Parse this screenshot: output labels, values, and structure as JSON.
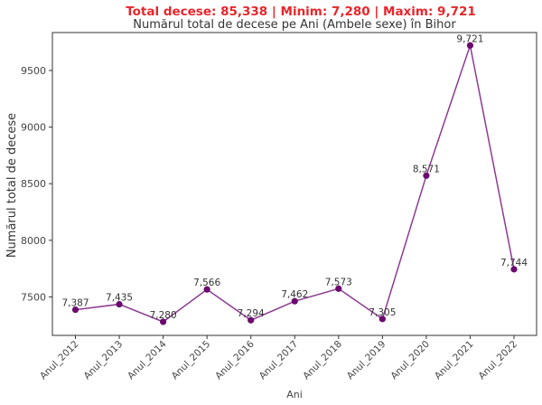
{
  "header": {
    "summary": "Total decese: 85,338 | Minim: 7,280 | Maxim: 9,721",
    "summary_color": "#e8262b"
  },
  "chart_data": {
    "type": "line",
    "title": "Numărul total de decese pe Ani (Ambele sexe) în Bihor",
    "xlabel": "Ani",
    "ylabel": "Numărul total de decese",
    "categories": [
      "Anul_2012",
      "Anul_2013",
      "Anul_2014",
      "Anul_2015",
      "Anul_2016",
      "Anul_2017",
      "Anul_2018",
      "Anul_2019",
      "Anul_2020",
      "Anul_2021",
      "Anul_2022"
    ],
    "values": [
      7387,
      7435,
      7280,
      7566,
      7294,
      7462,
      7573,
      7305,
      8571,
      9721,
      7744
    ],
    "data_labels": [
      "7,387",
      "7,435",
      "7,280",
      "7,566",
      "7,294",
      "7,462",
      "7,573",
      "7,305",
      "8,571",
      "9,721",
      "7,744"
    ],
    "ylim": [
      7160,
      9835
    ],
    "yticks": [
      7500,
      8000,
      8500,
      9000,
      9500
    ],
    "grid": false,
    "legend": "none",
    "line_color": "#8e3a92",
    "marker_color": "#6a0a6e"
  }
}
